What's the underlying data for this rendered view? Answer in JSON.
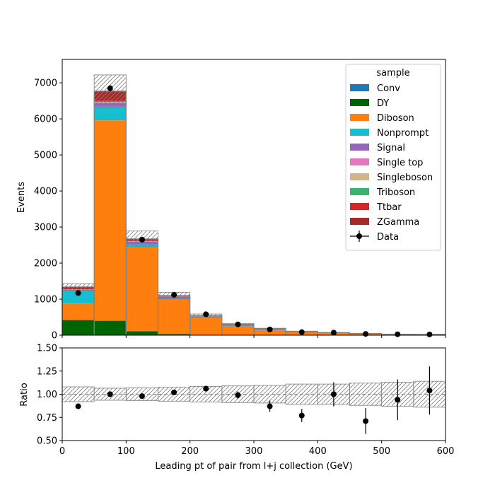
{
  "chart_data": [
    {
      "type": "bar",
      "stacked": true,
      "panel": "main",
      "ylabel": "Events",
      "xlim": [
        0,
        600
      ],
      "ylim": [
        0,
        7650
      ],
      "y_ticks": [
        "0",
        "1000",
        "2000",
        "3000",
        "4000",
        "5000",
        "6000",
        "7000"
      ],
      "bin_edges": [
        0,
        50,
        100,
        150,
        200,
        250,
        300,
        350,
        400,
        450,
        500,
        550,
        600
      ],
      "series": [
        {
          "name": "Conv",
          "color": "#1f77b4",
          "values": [
            0,
            0,
            0,
            0,
            0,
            0,
            0,
            0,
            0,
            0,
            0,
            0
          ]
        },
        {
          "name": "DY",
          "color": "#006400",
          "values": [
            420,
            400,
            110,
            30,
            10,
            5,
            3,
            2,
            1,
            1,
            0,
            0
          ]
        },
        {
          "name": "Diboson",
          "color": "#ff7f0e",
          "values": [
            460,
            5560,
            2330,
            960,
            470,
            250,
            140,
            80,
            55,
            35,
            22,
            18
          ]
        },
        {
          "name": "Nonprompt",
          "color": "#17becf",
          "values": [
            340,
            380,
            90,
            30,
            15,
            8,
            5,
            3,
            2,
            1,
            1,
            1
          ]
        },
        {
          "name": "Signal",
          "color": "#9467bd",
          "values": [
            30,
            100,
            60,
            40,
            30,
            30,
            25,
            15,
            10,
            8,
            5,
            4
          ]
        },
        {
          "name": "Single top",
          "color": "#e377c2",
          "values": [
            10,
            20,
            10,
            5,
            3,
            2,
            1,
            1,
            1,
            0,
            0,
            0
          ]
        },
        {
          "name": "Singleboson",
          "color": "#d2b48c",
          "values": [
            5,
            10,
            5,
            2,
            1,
            1,
            0,
            0,
            0,
            0,
            0,
            0
          ]
        },
        {
          "name": "Triboson",
          "color": "#3cb371",
          "values": [
            5,
            10,
            5,
            3,
            2,
            1,
            1,
            0,
            0,
            0,
            0,
            0
          ]
        },
        {
          "name": "Ttbar",
          "color": "#d62728",
          "values": [
            15,
            30,
            15,
            10,
            5,
            3,
            2,
            1,
            1,
            0,
            0,
            0
          ]
        },
        {
          "name": "ZGamma",
          "color": "#a52a2a",
          "values": [
            55,
            260,
            45,
            20,
            6,
            3,
            2,
            1,
            0,
            0,
            0,
            0
          ]
        }
      ],
      "uncertainty": [
        90,
        450,
        220,
        90,
        45,
        25,
        15,
        10,
        7,
        5,
        3,
        2
      ],
      "data": {
        "name": "Data",
        "x": [
          25,
          75,
          125,
          175,
          225,
          275,
          325,
          375,
          425,
          475,
          525,
          575
        ],
        "y": [
          1170,
          6850,
          2650,
          1120,
          580,
          300,
          160,
          85,
          70,
          35,
          25,
          20
        ],
        "yerr": [
          34,
          83,
          51,
          33,
          24,
          17,
          13,
          9,
          8,
          6,
          5,
          4
        ]
      },
      "legend": {
        "title": "sample",
        "placement": "top-right"
      }
    },
    {
      "type": "scatter",
      "panel": "ratio",
      "ylabel": "Ratio",
      "xlabel": "Leading pt of pair from l+j collection (GeV)",
      "xlim": [
        0,
        600
      ],
      "ylim": [
        0.5,
        1.5
      ],
      "x_ticks": [
        "0",
        "100",
        "200",
        "300",
        "400",
        "500",
        "600"
      ],
      "y_ticks": [
        "0.50",
        "0.75",
        "1.00",
        "1.25",
        "1.50"
      ],
      "reference_line": 1.0,
      "band_upper": [
        1.08,
        1.065,
        1.07,
        1.075,
        1.085,
        1.09,
        1.095,
        1.11,
        1.11,
        1.12,
        1.13,
        1.14
      ],
      "band_lower": [
        0.92,
        0.935,
        0.93,
        0.925,
        0.915,
        0.91,
        0.905,
        0.89,
        0.89,
        0.88,
        0.87,
        0.86
      ],
      "x": [
        25,
        75,
        125,
        175,
        225,
        275,
        325,
        375,
        425,
        475,
        525,
        575
      ],
      "y": [
        0.87,
        1.0,
        0.98,
        1.02,
        1.06,
        0.99,
        0.87,
        0.77,
        1.0,
        0.71,
        0.94,
        1.04
      ],
      "yerr": [
        0.0,
        0.0,
        0.0,
        0.0,
        0.03,
        0.04,
        0.06,
        0.07,
        0.13,
        0.14,
        0.22,
        0.26
      ]
    }
  ]
}
